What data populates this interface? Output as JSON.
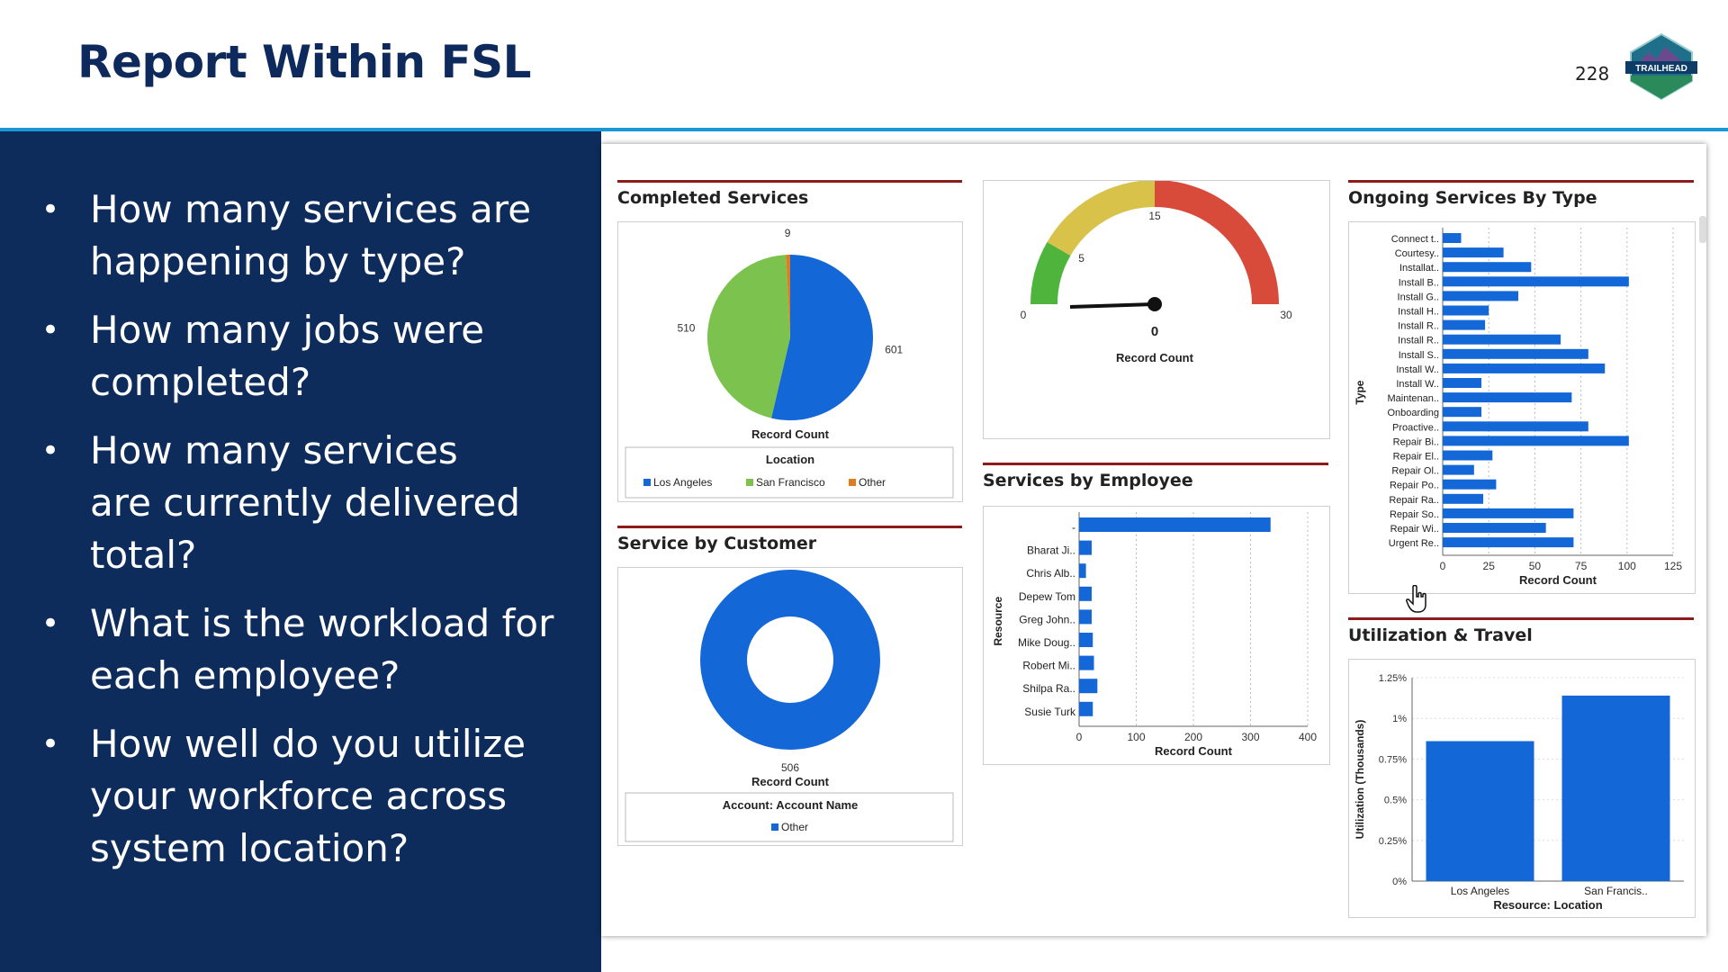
{
  "slide": {
    "title": "Report Within FSL",
    "page_number": "228",
    "logo_text": "TRAILHEAD",
    "bullets": [
      {
        "lines": [
          "How many services are",
          "happening by type?"
        ]
      },
      {
        "lines": [
          "How many jobs were",
          "completed?"
        ]
      },
      {
        "lines": [
          "How many services",
          "are currently delivered",
          "total?"
        ]
      },
      {
        "lines": [
          "What is the workload for",
          "each employee?"
        ]
      },
      {
        "lines": [
          "How well do you utilize",
          "your workforce across",
          "system location?"
        ]
      }
    ],
    "bullet_symbol": "•"
  },
  "dashboard": {
    "completed_services": {
      "title": "Completed Services"
    },
    "gauge_widget": {
      "title": ""
    },
    "ongoing_services": {
      "title": "Ongoing Services By Type"
    },
    "services_by_employee": {
      "title": "Services by Employee"
    },
    "service_by_customer": {
      "title": "Service by Customer"
    },
    "utilization_travel": {
      "title": "Utilization & Travel"
    }
  },
  "colors": {
    "blue": "#1467d6",
    "green": "#7cc24e",
    "orange": "#e07b1f",
    "red": "#d84a3a",
    "yellow": "#d8c24a",
    "header_rule": "#8a1c1c"
  },
  "icons": {
    "cursor": "hand-cursor-icon"
  },
  "chart_data": [
    {
      "type": "pie",
      "title": "Completed Services",
      "value_label": "Record Count",
      "legend_title": "Location",
      "categories": [
        "Los Angeles",
        "San Francisco",
        "Other"
      ],
      "values": [
        601,
        510,
        9
      ],
      "colors": [
        "#1467d6",
        "#7cc24e",
        "#e07b1f"
      ]
    },
    {
      "type": "gauge",
      "label": "Record Count",
      "value": 0,
      "value_text": "0",
      "min": 0,
      "max": 30,
      "breakpoints": [
        5,
        15
      ],
      "tick_labels": [
        "0",
        "5",
        "15",
        "30"
      ],
      "bands": [
        "#4fb43c",
        "#d8c24a",
        "#d84a3a"
      ]
    },
    {
      "type": "bar",
      "orientation": "horizontal",
      "title": "Ongoing Services By Type",
      "ylabel": "Type",
      "xlabel": "Record Count",
      "xlim": [
        0,
        125
      ],
      "xticks": [
        "0",
        "25",
        "50",
        "75",
        "100",
        "125"
      ],
      "categories": [
        "Connect t..",
        "Courtesy..",
        "Installat..",
        "Install B..",
        "Install G..",
        "Install H..",
        "Install R..",
        "Install R..",
        "Install S..",
        "Install W..",
        "Install W..",
        "Maintenan..",
        "Onboarding",
        "Proactive..",
        "Repair Bi..",
        "Repair El..",
        "Repair Ol..",
        "Repair Po..",
        "Repair Ra..",
        "Repair So..",
        "Repair Wi..",
        "Urgent Re.."
      ],
      "values": [
        10,
        33,
        48,
        101,
        41,
        25,
        23,
        64,
        79,
        88,
        21,
        70,
        21,
        79,
        101,
        27,
        17,
        29,
        22,
        71,
        56,
        71
      ]
    },
    {
      "type": "bar",
      "orientation": "horizontal",
      "title": "Services by Employee",
      "ylabel": "Resource",
      "xlabel": "Record Count",
      "xlim": [
        0,
        400
      ],
      "xticks": [
        "0",
        "100",
        "200",
        "300",
        "400"
      ],
      "categories": [
        "-",
        "Bharat Ji..",
        "Chris Alb..",
        "Depew Tom",
        "Greg John..",
        "Mike Doug..",
        "Robert Mi..",
        "Shilpa Ra..",
        "Susie Turk"
      ],
      "values": [
        335,
        22,
        12,
        22,
        22,
        24,
        26,
        32,
        24
      ]
    },
    {
      "type": "donut",
      "title": "Service by Customer",
      "value_label": "Record Count",
      "legend_title": "Account: Account Name",
      "categories": [
        "Other"
      ],
      "values": [
        506
      ],
      "colors": [
        "#1467d6"
      ]
    },
    {
      "type": "bar",
      "title": "Utilization & Travel",
      "ylabel": "Utilization (Thousands)",
      "xlabel": "Resource: Location",
      "ylim": [
        0,
        1.25
      ],
      "yticks": [
        "0%",
        "0.25%",
        "0.5%",
        "0.75%",
        "1%",
        "1.25%"
      ],
      "categories": [
        "Los Angeles",
        "San Francis.."
      ],
      "values": [
        0.86,
        1.14
      ]
    }
  ]
}
